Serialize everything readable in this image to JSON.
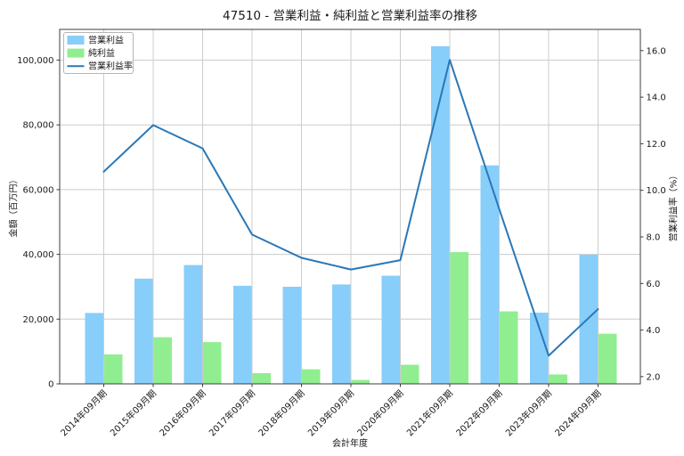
{
  "chart_data": {
    "type": "bar+line",
    "title": "47510 - 営業利益・純利益と営業利益率の推移",
    "xlabel": "会計年度",
    "ylabel_left": "金額（百万円）",
    "ylabel_right": "営業利益率（%）",
    "categories": [
      "2014年09月期",
      "2015年09月期",
      "2016年09月期",
      "2017年09月期",
      "2018年09月期",
      "2019年09月期",
      "2020年09月期",
      "2021年09月期",
      "2022年09月期",
      "2023年09月期",
      "2024年09月期"
    ],
    "series": [
      {
        "name": "営業利益",
        "type": "bar",
        "axis": "left",
        "color": "#87CEFA",
        "values": [
          21900,
          32500,
          36700,
          30300,
          30000,
          30700,
          33400,
          104300,
          67500,
          22000,
          39900
        ]
      },
      {
        "name": "純利益",
        "type": "bar",
        "axis": "left",
        "color": "#90EE90",
        "values": [
          9100,
          14400,
          12900,
          3300,
          4500,
          1200,
          5900,
          40700,
          22400,
          2900,
          15500
        ]
      },
      {
        "name": "営業利益率",
        "type": "line",
        "axis": "right",
        "color": "#2878b8",
        "values": [
          10.8,
          12.8,
          11.8,
          8.1,
          7.1,
          6.6,
          7.0,
          15.6,
          9.2,
          2.9,
          4.9
        ]
      }
    ],
    "y_left": {
      "lim": [
        0,
        109500
      ],
      "ticks": [
        0,
        20000,
        40000,
        60000,
        80000,
        100000
      ],
      "tick_labels": [
        "0",
        "20,000",
        "40,000",
        "60,000",
        "80,000",
        "100,000"
      ]
    },
    "y_right": {
      "lim": [
        1.69,
        16.91
      ],
      "ticks": [
        2,
        4,
        6,
        8,
        10,
        12,
        14,
        16
      ],
      "tick_labels": [
        "2.0",
        "4.0",
        "6.0",
        "8.0",
        "10.0",
        "12.0",
        "14.0",
        "16.0"
      ]
    },
    "legend": {
      "position": "upper-left",
      "entries": [
        "営業利益",
        "純利益",
        "営業利益率"
      ]
    },
    "grid": true,
    "colors": {
      "grid": "#cccccc",
      "spine": "#3c3c3c",
      "text": "#1a1a1a",
      "legend_border": "#b5b5b5"
    }
  }
}
